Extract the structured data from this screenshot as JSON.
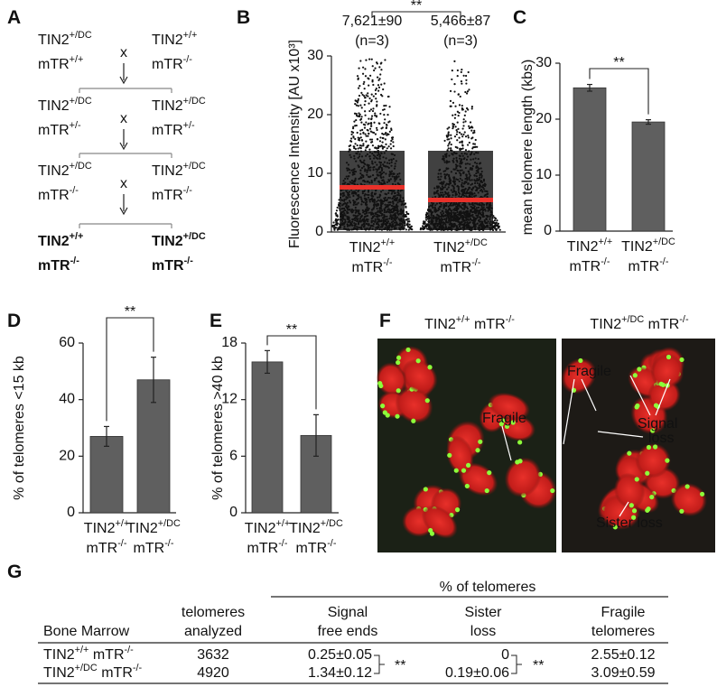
{
  "panel_labels": [
    "A",
    "B",
    "C",
    "D",
    "E",
    "F",
    "G"
  ],
  "cross": {
    "cross_symbol": "x",
    "generations": [
      {
        "left": [
          "TIN2+/DC",
          "mTR+/+"
        ],
        "right": [
          "TIN2+/+",
          "mTR-/-"
        ]
      },
      {
        "left": [
          "TIN2+/DC",
          "mTR+/-"
        ],
        "right": [
          "TIN2+/DC",
          "mTR+/-"
        ]
      },
      {
        "left": [
          "TIN2+/DC",
          "mTR-/-"
        ],
        "right": [
          "TIN2+/DC",
          "mTR-/-"
        ]
      },
      {
        "left": [
          "TIN2+/+",
          "mTR-/-"
        ],
        "right": [
          "TIN2+/DC",
          "mTR-/-"
        ]
      }
    ]
  },
  "chart_data": [
    {
      "type": "dot",
      "ylabel": "Fluorescence Intensity [AU x10³]",
      "categories": [
        [
          "TIN2+/+",
          "mTR-/-"
        ],
        [
          "TIN2+/DC",
          "mTR-/-"
        ]
      ],
      "values": [
        7.621,
        5.466
      ],
      "value_labels": [
        "7,621±90",
        "5,466±87"
      ],
      "n_labels": [
        "(n=3)",
        "(n=3)"
      ],
      "color": "#e8312a",
      "ylim": [
        0,
        30
      ],
      "yticks": [
        0,
        10,
        20,
        30
      ],
      "significance": "**"
    },
    {
      "type": "bar",
      "ylabel": "mean telomere length (kbs)",
      "categories": [
        [
          "TIN2+/+",
          "mTR-/-"
        ],
        [
          "TIN2+/DC",
          "mTR-/-"
        ]
      ],
      "values": [
        25.6,
        19.5
      ],
      "errors": [
        0.6,
        0.4
      ],
      "color": "#5f5f5f",
      "ylim": [
        0,
        30
      ],
      "yticks": [
        0,
        10,
        20,
        30
      ],
      "significance": "**"
    },
    {
      "type": "bar",
      "ylabel": "% of telomeres <15 kb",
      "categories": [
        [
          "TIN2+/+",
          "mTR-/-"
        ],
        [
          "TIN2+/DC",
          "mTR-/-"
        ]
      ],
      "values": [
        27,
        47
      ],
      "errors": [
        3.5,
        8
      ],
      "color": "#5f5f5f",
      "ylim": [
        0,
        60
      ],
      "yticks": [
        0,
        20,
        40,
        60
      ],
      "significance": "**"
    },
    {
      "type": "bar",
      "ylabel": "% of telomeres >40 kb",
      "categories": [
        [
          "TIN2+/+",
          "mTR-/-"
        ],
        [
          "TIN2+/DC",
          "mTR-/-"
        ]
      ],
      "values": [
        16,
        8.2
      ],
      "errors": [
        1.2,
        2.2
      ],
      "color": "#5f5f5f",
      "ylim": [
        0,
        18
      ],
      "yticks": [
        0,
        6,
        12,
        18
      ],
      "significance": "**"
    }
  ],
  "images": [
    {
      "title": "TIN2+/+ mTR-/-",
      "annotations": [
        [
          "Fragile"
        ]
      ]
    },
    {
      "title": "TIN2+/DC mTR-/-",
      "annotations": [
        [
          "Fragile"
        ],
        [
          "Signal",
          "loss"
        ],
        [
          "Sister loss"
        ]
      ]
    }
  ],
  "table": {
    "spanner": "% of telomeres",
    "columns": [
      [
        "Bone Marrow"
      ],
      [
        "telomeres",
        "analyzed"
      ],
      [
        "Signal",
        "free ends"
      ],
      [
        "Sister",
        "loss"
      ],
      [
        "Fragile",
        "telomeres"
      ]
    ],
    "rows": [
      [
        "TIN2+/+ mTR-/-",
        3632,
        "0.25±0.05",
        0,
        "2.55±0.12"
      ],
      [
        "TIN2+/DC mTR-/-",
        4920,
        "1.34±0.12",
        "0.19±0.06",
        "3.09±0.59"
      ]
    ],
    "significance": [
      "**",
      "**"
    ]
  }
}
